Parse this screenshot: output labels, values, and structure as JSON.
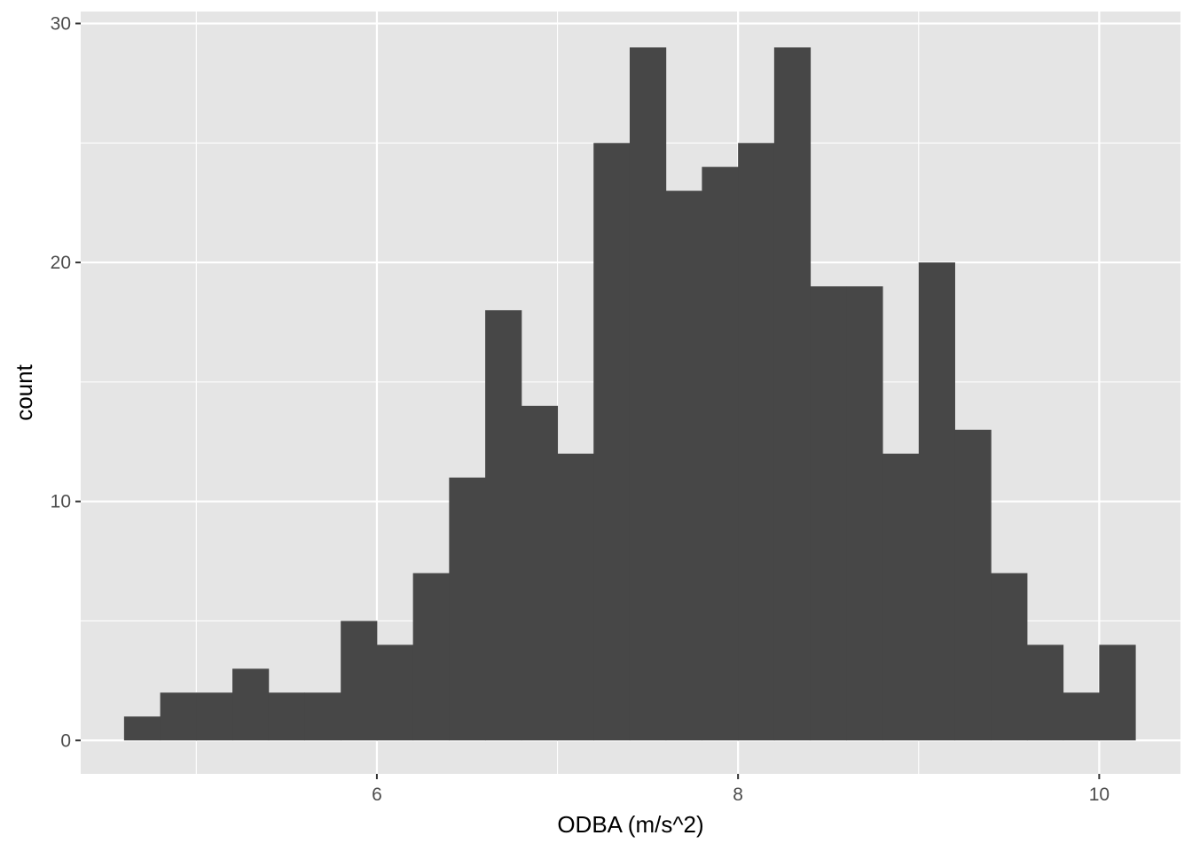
{
  "chart_data": {
    "type": "bar",
    "subtype": "histogram",
    "title": "",
    "xlabel": "ODBA (m/s^2)",
    "ylabel": "count",
    "xlim": [
      4.36,
      10.45
    ],
    "ylim": [
      -1.4,
      30.5
    ],
    "bin_width": 0.2,
    "bins": [
      {
        "x0": 4.6,
        "x1": 4.8,
        "count": 1
      },
      {
        "x0": 4.8,
        "x1": 5.0,
        "count": 2
      },
      {
        "x0": 5.0,
        "x1": 5.2,
        "count": 2
      },
      {
        "x0": 5.2,
        "x1": 5.4,
        "count": 3
      },
      {
        "x0": 5.4,
        "x1": 5.6,
        "count": 2
      },
      {
        "x0": 5.6,
        "x1": 5.8,
        "count": 2
      },
      {
        "x0": 5.8,
        "x1": 6.0,
        "count": 5
      },
      {
        "x0": 6.0,
        "x1": 6.2,
        "count": 4
      },
      {
        "x0": 6.2,
        "x1": 6.4,
        "count": 7
      },
      {
        "x0": 6.4,
        "x1": 6.6,
        "count": 11
      },
      {
        "x0": 6.6,
        "x1": 6.8,
        "count": 18
      },
      {
        "x0": 6.8,
        "x1": 7.0,
        "count": 14
      },
      {
        "x0": 7.0,
        "x1": 7.2,
        "count": 12
      },
      {
        "x0": 7.2,
        "x1": 7.4,
        "count": 25
      },
      {
        "x0": 7.4,
        "x1": 7.6,
        "count": 29
      },
      {
        "x0": 7.6,
        "x1": 7.8,
        "count": 23
      },
      {
        "x0": 7.8,
        "x1": 8.0,
        "count": 24
      },
      {
        "x0": 8.0,
        "x1": 8.2,
        "count": 25
      },
      {
        "x0": 8.2,
        "x1": 8.4,
        "count": 29
      },
      {
        "x0": 8.4,
        "x1": 8.6,
        "count": 19
      },
      {
        "x0": 8.6,
        "x1": 8.8,
        "count": 19
      },
      {
        "x0": 8.8,
        "x1": 9.0,
        "count": 12
      },
      {
        "x0": 9.0,
        "x1": 9.2,
        "count": 20
      },
      {
        "x0": 9.2,
        "x1": 9.4,
        "count": 13
      },
      {
        "x0": 9.4,
        "x1": 9.6,
        "count": 7
      },
      {
        "x0": 9.6,
        "x1": 9.8,
        "count": 4
      },
      {
        "x0": 9.8,
        "x1": 10.0,
        "count": 2
      },
      {
        "x0": 10.0,
        "x1": 10.2,
        "count": 4
      }
    ],
    "x_major_ticks": [
      6,
      8,
      10
    ],
    "x_tick_labels": [
      "6",
      "8",
      "10"
    ],
    "x_minor_ticks": [
      5,
      7,
      9
    ],
    "y_major_ticks": [
      0,
      10,
      20,
      30
    ],
    "y_tick_labels": [
      "0",
      "10",
      "20",
      "30"
    ],
    "y_minor_ticks": [
      5,
      15,
      25
    ],
    "grid": true,
    "legend": "none",
    "colors": {
      "panel_background": "#e5e5e5",
      "grid": "#ffffff",
      "bar_fill": "#474747",
      "tick_mark": "#333333",
      "tick_label": "#4d4d4d",
      "axis_title": "#000000"
    }
  }
}
